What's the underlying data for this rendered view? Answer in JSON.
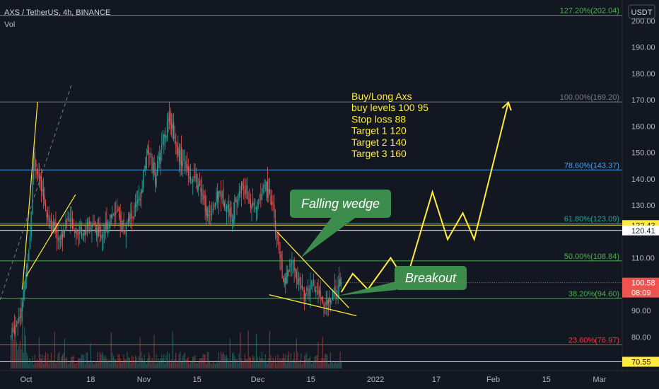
{
  "header": {
    "symbol": "AXS / TetherUS, 4h, BINANCE",
    "vol_label": "Vol",
    "currency": "USDT"
  },
  "colors": {
    "background": "#131722",
    "up": "#26a69a",
    "down": "#ef5350",
    "annotation": "#ffeb3b",
    "callout": "#3c8c4c",
    "fib_blue": "#42a5f5",
    "fib_green": "#4caf50",
    "fib_red": "#f23645",
    "fib_grey": "#787b86"
  },
  "annotations": {
    "plan_lines": [
      "Buy/Long Axs",
      "buy levels 100 95",
      "Stop loss 88",
      "Target 1 120",
      "Target 2 140",
      "Target 3 160"
    ],
    "falling_wedge": "Falling wedge",
    "breakout": "Breakout"
  },
  "chart_data": {
    "type": "candlestick",
    "title": "AXS / TetherUS, 4h, BINANCE",
    "ylabel": "USDT",
    "ylim": [
      68,
      206
    ],
    "y_ticks": [
      80,
      90,
      100,
      110,
      120,
      130,
      140,
      150,
      160,
      170,
      180,
      190,
      200
    ],
    "y_tick_labels": [
      "80.00",
      "90.00",
      "100.00",
      "110.00",
      "120.00",
      "130.00",
      "140.00",
      "150.00",
      "160.00",
      "170.00",
      "180.00",
      "190.00",
      "200.00"
    ],
    "x_tick_labels": [
      "Oct",
      "18",
      "Nov",
      "15",
      "Dec",
      "15",
      "2022",
      "17",
      "Feb",
      "15",
      "Mar"
    ],
    "x_tick_dates": [
      "2021-10-01",
      "2021-10-18",
      "2021-11-01",
      "2021-11-15",
      "2021-12-01",
      "2021-12-15",
      "2022-01-01",
      "2022-01-17",
      "2022-02-01",
      "2022-02-15",
      "2022-03-01"
    ],
    "last_price": {
      "value": 100.58,
      "label": "100.58",
      "countdown": "08:09"
    },
    "price_tags": [
      {
        "value": 122.43,
        "label": "122.43",
        "color": "#ffeb3b"
      },
      {
        "value": 120.41,
        "label": "120.41",
        "color": "#ffffff"
      },
      {
        "value": 70.55,
        "label": "70.55",
        "color": "#ffeb3b"
      }
    ],
    "fib_levels": [
      {
        "label": "127.20%(202.04)",
        "value": 202.04,
        "color": "#4caf50"
      },
      {
        "label": "100.00%(169.20)",
        "value": 169.2,
        "color": "#787b86"
      },
      {
        "label": "78.60%(143.37)",
        "value": 143.37,
        "color": "#42a5f5"
      },
      {
        "label": "61.80%(123.09)",
        "value": 123.09,
        "color": "#26a69a"
      },
      {
        "label": "50.00%(108.84)",
        "value": 108.84,
        "color": "#4caf50"
      },
      {
        "label": "38.20%(94.60)",
        "value": 94.6,
        "color": "#4caf50"
      },
      {
        "label": "23.60%(76.97)",
        "value": 76.97,
        "color": "#f23645"
      }
    ],
    "price_path": [
      [
        "2021-09-27",
        80
      ],
      [
        "2021-09-30",
        92
      ],
      [
        "2021-10-02",
        118
      ],
      [
        "2021-10-03",
        150
      ],
      [
        "2021-10-05",
        135
      ],
      [
        "2021-10-07",
        125
      ],
      [
        "2021-10-10",
        117
      ],
      [
        "2021-10-12",
        125
      ],
      [
        "2021-10-15",
        120
      ],
      [
        "2021-10-18",
        122
      ],
      [
        "2021-10-21",
        119
      ],
      [
        "2021-10-24",
        128
      ],
      [
        "2021-10-27",
        121
      ],
      [
        "2021-10-31",
        132
      ],
      [
        "2021-11-02",
        152
      ],
      [
        "2021-11-04",
        140
      ],
      [
        "2021-11-06",
        155
      ],
      [
        "2021-11-08",
        163
      ],
      [
        "2021-11-10",
        150
      ],
      [
        "2021-11-13",
        142
      ],
      [
        "2021-11-16",
        135
      ],
      [
        "2021-11-18",
        126
      ],
      [
        "2021-11-21",
        135
      ],
      [
        "2021-11-24",
        126
      ],
      [
        "2021-11-27",
        138
      ],
      [
        "2021-11-30",
        128
      ],
      [
        "2021-12-03",
        138
      ],
      [
        "2021-12-05",
        128
      ],
      [
        "2021-12-06",
        117
      ],
      [
        "2021-12-08",
        100
      ],
      [
        "2021-12-10",
        108
      ],
      [
        "2021-12-13",
        96
      ],
      [
        "2021-12-16",
        99
      ],
      [
        "2021-12-19",
        92
      ],
      [
        "2021-12-21",
        96
      ],
      [
        "2021-12-23",
        100.58
      ]
    ],
    "projection": [
      [
        "2021-12-23",
        97
      ],
      [
        "2021-12-26",
        104
      ],
      [
        "2021-12-30",
        98
      ],
      [
        "2022-01-05",
        110
      ],
      [
        "2022-01-09",
        101
      ],
      [
        "2022-01-16",
        135
      ],
      [
        "2022-01-20",
        117
      ],
      [
        "2022-01-24",
        127
      ],
      [
        "2022-01-27",
        117
      ],
      [
        "2022-02-05",
        169
      ]
    ],
    "wedge": {
      "upper": [
        [
          "2021-12-06",
          120
        ],
        [
          "2021-12-25",
          91
        ]
      ],
      "lower": [
        [
          "2021-12-04",
          96
        ],
        [
          "2021-12-27",
          88
        ]
      ]
    },
    "grid": false
  }
}
